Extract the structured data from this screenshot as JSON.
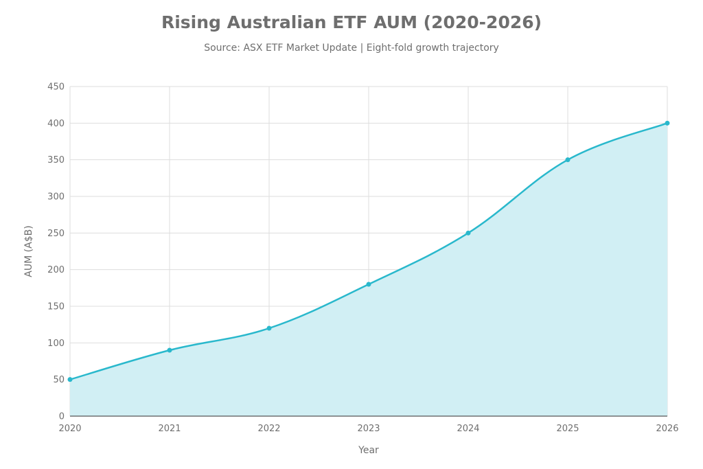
{
  "chart_data": {
    "type": "area",
    "title": "Rising Australian ETF AUM (2020-2026)",
    "subtitle": "Source: ASX ETF Market Update | Eight-fold growth trajectory",
    "xlabel": "Year",
    "ylabel": "AUM (A$B)",
    "x": [
      "2020",
      "2021",
      "2022",
      "2023",
      "2024",
      "2025",
      "2026"
    ],
    "values": [
      50,
      90,
      120,
      180,
      250,
      350,
      400
    ],
    "ylim": [
      0,
      450
    ],
    "yticks": [
      0,
      50,
      100,
      150,
      200,
      250,
      300,
      350,
      400,
      450
    ],
    "grid": true,
    "colors": {
      "line": "#29b8cc",
      "fill": "#d1eff4",
      "grid": "#dddddd",
      "text": "#6e6e6e"
    }
  }
}
